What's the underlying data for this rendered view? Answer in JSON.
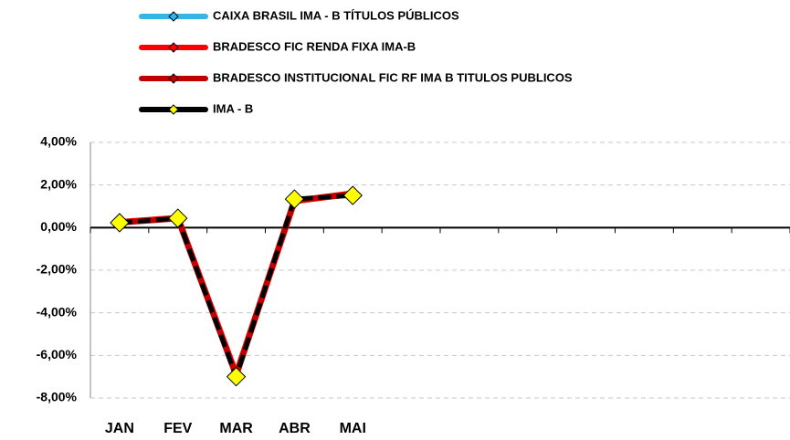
{
  "chart_data": {
    "type": "line",
    "categories": [
      "JAN",
      "FEV",
      "MAR",
      "ABR",
      "MAI",
      null,
      null,
      null,
      null,
      null,
      null,
      null
    ],
    "series": [
      {
        "name": "CAIXA BRASIL IMA - B TÍTULOS PÚBLICOS",
        "color": "#33b5e5",
        "values": [
          0.22,
          0.42,
          -6.98,
          1.3,
          1.55,
          null,
          null,
          null,
          null,
          null,
          null,
          null
        ]
      },
      {
        "name": "BRADESCO FIC RENDA FIXA IMA-B",
        "color": "#ff0000",
        "values": [
          0.25,
          0.45,
          -6.9,
          1.25,
          1.6,
          null,
          null,
          null,
          null,
          null,
          null,
          null
        ]
      },
      {
        "name": "BRADESCO INSTITUCIONAL FIC RF IMA B TITULOS PUBLICOS",
        "color": "#c00000",
        "values": [
          0.24,
          0.43,
          -6.95,
          1.28,
          1.58,
          null,
          null,
          null,
          null,
          null,
          null,
          null
        ]
      },
      {
        "name": "IMA - B",
        "color": "#000000",
        "marker_color": "#ffff00",
        "values": [
          0.23,
          0.44,
          -7.0,
          1.34,
          1.51,
          null,
          null,
          null,
          null,
          null,
          null,
          null
        ]
      }
    ],
    "ylim": [
      -8,
      4
    ],
    "yticks": [
      {
        "value": -8,
        "label": "-8,00%"
      },
      {
        "value": -6,
        "label": "-6,00%"
      },
      {
        "value": -4,
        "label": "-4,00%"
      },
      {
        "value": -2,
        "label": "-2,00%"
      },
      {
        "value": 0,
        "label": "0,00%"
      },
      {
        "value": 2,
        "label": "2,00%"
      },
      {
        "value": 4,
        "label": "4,00%"
      }
    ],
    "grid": true,
    "legend": "top"
  }
}
